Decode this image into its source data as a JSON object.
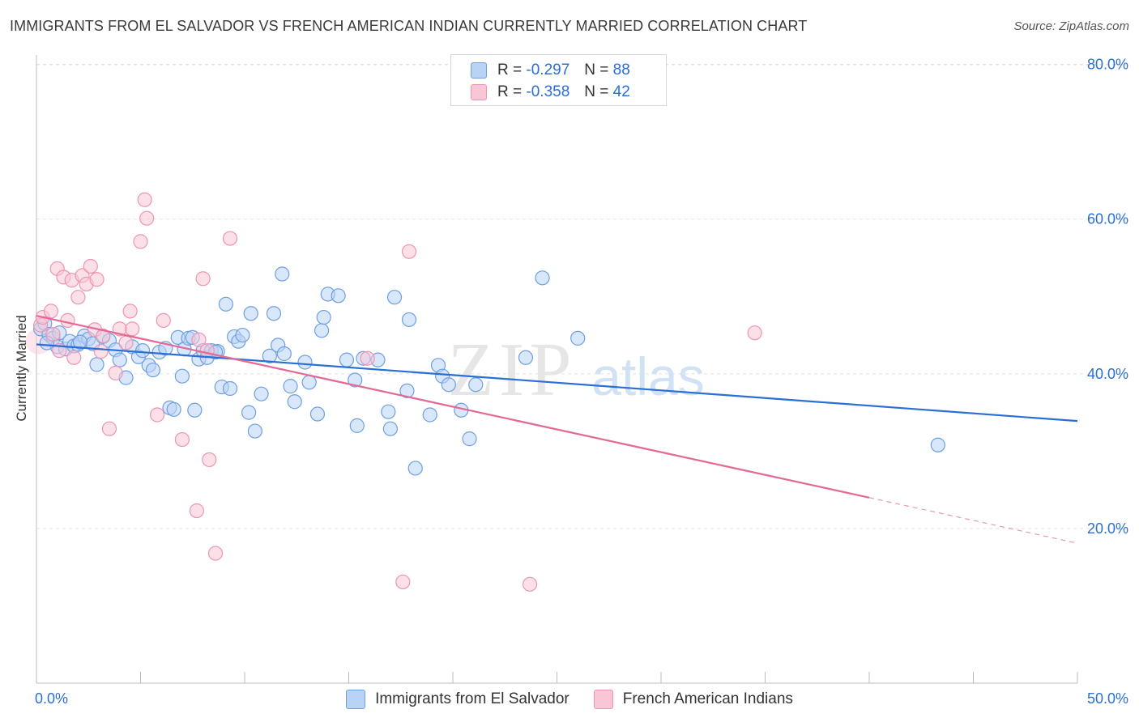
{
  "title": "IMMIGRANTS FROM EL SALVADOR VS FRENCH AMERICAN INDIAN CURRENTLY MARRIED CORRELATION CHART",
  "source": "Source: ZipAtlas.com",
  "watermark": {
    "zip": "ZIP",
    "atlas": "atlas"
  },
  "legend": {
    "rows": [
      {
        "r_label": "R =",
        "r_value": "-0.297",
        "n_label": "N =",
        "n_value": "88"
      },
      {
        "r_label": "R =",
        "r_value": "-0.358",
        "n_label": "N =",
        "n_value": "42"
      }
    ]
  },
  "colors": {
    "blue_fill": "#b9d3f7",
    "blue_stroke": "#6f9fe0",
    "blue_line": "#2a6fd6",
    "pink_fill": "#f9c6d6",
    "pink_stroke": "#ec95b2",
    "pink_line": "#e36a96",
    "tick_text": "#2a6fd6",
    "grid": "#e2e2e2"
  },
  "chart_data": {
    "type": "scatter",
    "xlabel": "",
    "ylabel": "Currently Married",
    "xlim": [
      0,
      50
    ],
    "ylim": [
      0,
      83
    ],
    "x_ticks": [
      {
        "value": 0,
        "label": "0.0%"
      },
      {
        "value": 50,
        "label": "50.0%"
      }
    ],
    "y_ticks": [
      {
        "value": 20,
        "label": "20.0%"
      },
      {
        "value": 40,
        "label": "40.0%"
      },
      {
        "value": 60,
        "label": "60.0%"
      },
      {
        "value": 80,
        "label": "80.0%"
      }
    ],
    "grid": true,
    "legend_position": "top-center",
    "series": [
      {
        "name": "Immigrants from El Salvador",
        "color": "blue",
        "trend": {
          "x": [
            0,
            50
          ],
          "y": [
            43.8,
            33.9
          ]
        },
        "points": [
          [
            0.2,
            45.8
          ],
          [
            0.4,
            46.5
          ],
          [
            0.6,
            45.1
          ],
          [
            0.8,
            44.6
          ],
          [
            1.0,
            43.5
          ],
          [
            1.1,
            45.3
          ],
          [
            1.4,
            43.2
          ],
          [
            1.6,
            44.2
          ],
          [
            1.8,
            43.6
          ],
          [
            2.0,
            43.8
          ],
          [
            2.3,
            44.9
          ],
          [
            2.5,
            44.5
          ],
          [
            2.7,
            43.9
          ],
          [
            2.9,
            41.2
          ],
          [
            3.2,
            44.8
          ],
          [
            3.5,
            44.3
          ],
          [
            3.8,
            43.1
          ],
          [
            4.0,
            41.8
          ],
          [
            4.3,
            39.5
          ],
          [
            4.6,
            43.5
          ],
          [
            4.9,
            42.2
          ],
          [
            5.1,
            43.0
          ],
          [
            5.4,
            41.1
          ],
          [
            5.6,
            40.5
          ],
          [
            5.9,
            42.8
          ],
          [
            6.2,
            43.3
          ],
          [
            6.4,
            35.6
          ],
          [
            6.6,
            35.4
          ],
          [
            6.8,
            44.7
          ],
          [
            7.0,
            39.7
          ],
          [
            7.1,
            43.2
          ],
          [
            7.3,
            44.6
          ],
          [
            7.5,
            44.7
          ],
          [
            7.6,
            35.3
          ],
          [
            7.8,
            41.9
          ],
          [
            8.0,
            43.0
          ],
          [
            8.2,
            42.1
          ],
          [
            8.4,
            43.0
          ],
          [
            8.7,
            42.9
          ],
          [
            8.9,
            38.3
          ],
          [
            9.1,
            49.0
          ],
          [
            9.3,
            38.1
          ],
          [
            9.5,
            44.8
          ],
          [
            9.7,
            44.2
          ],
          [
            9.9,
            45.0
          ],
          [
            10.2,
            35.0
          ],
          [
            10.3,
            47.8
          ],
          [
            10.5,
            32.6
          ],
          [
            10.8,
            37.4
          ],
          [
            11.2,
            42.3
          ],
          [
            11.4,
            47.8
          ],
          [
            11.6,
            43.7
          ],
          [
            11.8,
            52.9
          ],
          [
            11.9,
            42.6
          ],
          [
            12.2,
            38.4
          ],
          [
            12.4,
            36.4
          ],
          [
            12.9,
            41.5
          ],
          [
            13.1,
            38.9
          ],
          [
            13.5,
            34.8
          ],
          [
            13.7,
            45.6
          ],
          [
            13.8,
            47.3
          ],
          [
            14.0,
            50.3
          ],
          [
            14.5,
            50.1
          ],
          [
            14.9,
            41.8
          ],
          [
            15.3,
            39.2
          ],
          [
            15.4,
            33.3
          ],
          [
            15.7,
            42.0
          ],
          [
            16.4,
            41.8
          ],
          [
            16.9,
            35.1
          ],
          [
            17.0,
            32.9
          ],
          [
            17.2,
            49.9
          ],
          [
            17.8,
            37.8
          ],
          [
            17.9,
            47.0
          ],
          [
            18.2,
            27.8
          ],
          [
            18.9,
            34.7
          ],
          [
            19.3,
            41.1
          ],
          [
            19.5,
            39.7
          ],
          [
            19.8,
            38.6
          ],
          [
            20.4,
            35.3
          ],
          [
            20.8,
            31.6
          ],
          [
            21.1,
            38.6
          ],
          [
            23.5,
            42.1
          ],
          [
            24.3,
            52.4
          ],
          [
            26.0,
            44.6
          ],
          [
            43.3,
            30.8
          ],
          [
            0.5,
            44.0
          ],
          [
            2.1,
            44.1
          ],
          [
            8.6,
            42.8
          ]
        ]
      },
      {
        "name": "French American Indians",
        "color": "pink",
        "trend": {
          "x": [
            0,
            40
          ],
          "y": [
            47.5,
            24.0
          ]
        },
        "trend_dashed": {
          "x": [
            40,
            50
          ],
          "y": [
            24.0,
            18.1
          ]
        },
        "points": [
          [
            0.2,
            46.3
          ],
          [
            0.3,
            47.3
          ],
          [
            0.7,
            48.1
          ],
          [
            0.8,
            45.1
          ],
          [
            1.0,
            53.6
          ],
          [
            1.1,
            43.0
          ],
          [
            1.3,
            52.5
          ],
          [
            1.5,
            46.9
          ],
          [
            1.7,
            52.1
          ],
          [
            1.8,
            42.1
          ],
          [
            2.0,
            49.9
          ],
          [
            2.2,
            52.7
          ],
          [
            2.4,
            51.6
          ],
          [
            2.6,
            53.9
          ],
          [
            2.8,
            45.7
          ],
          [
            2.9,
            52.2
          ],
          [
            3.1,
            42.9
          ],
          [
            3.2,
            44.9
          ],
          [
            3.5,
            32.9
          ],
          [
            3.8,
            40.1
          ],
          [
            4.0,
            45.8
          ],
          [
            4.3,
            44.0
          ],
          [
            4.5,
            48.1
          ],
          [
            4.6,
            45.8
          ],
          [
            5.0,
            57.1
          ],
          [
            5.2,
            62.5
          ],
          [
            5.3,
            60.1
          ],
          [
            5.8,
            34.7
          ],
          [
            6.1,
            46.9
          ],
          [
            7.0,
            31.5
          ],
          [
            7.7,
            22.3
          ],
          [
            7.8,
            44.4
          ],
          [
            8.0,
            52.3
          ],
          [
            8.2,
            43.0
          ],
          [
            8.3,
            28.9
          ],
          [
            8.6,
            16.8
          ],
          [
            9.3,
            57.5
          ],
          [
            15.9,
            42.0
          ],
          [
            17.6,
            13.1
          ],
          [
            17.9,
            55.8
          ],
          [
            23.7,
            12.8
          ],
          [
            34.5,
            45.3
          ]
        ]
      }
    ]
  }
}
